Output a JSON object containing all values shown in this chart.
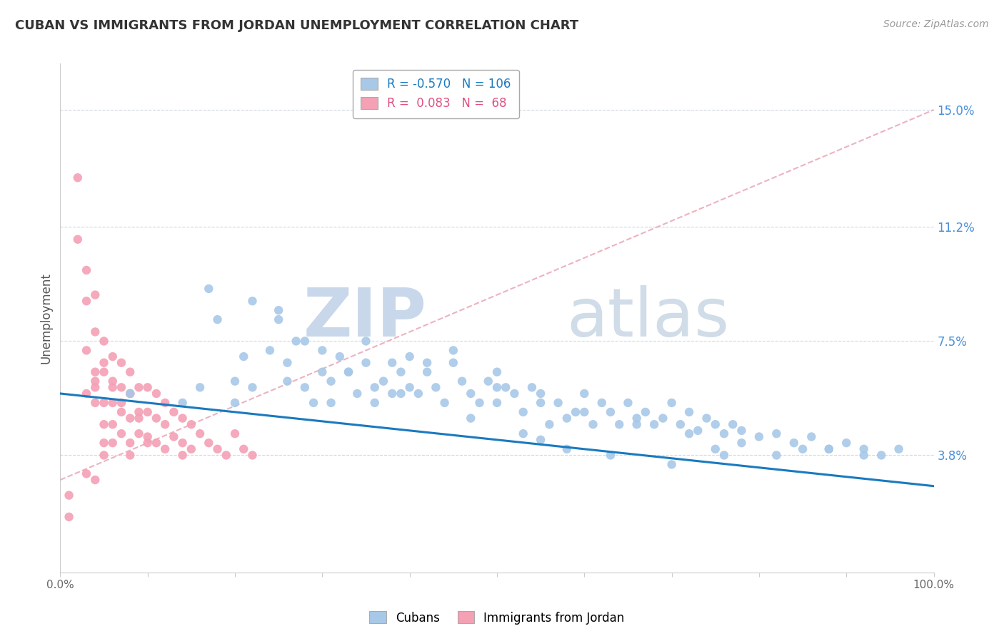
{
  "title": "CUBAN VS IMMIGRANTS FROM JORDAN UNEMPLOYMENT CORRELATION CHART",
  "source": "Source: ZipAtlas.com",
  "ylabel": "Unemployment",
  "y_ticks": [
    0.038,
    0.075,
    0.112,
    0.15
  ],
  "y_tick_labels": [
    "3.8%",
    "7.5%",
    "11.2%",
    "15.0%"
  ],
  "xlim": [
    0.0,
    1.0
  ],
  "ylim": [
    0.0,
    0.165
  ],
  "blue_color": "#a8c8e8",
  "pink_color": "#f4a0b5",
  "trend_blue_color": "#1a7abf",
  "trend_pink_color": "#e8a0b0",
  "watermark_zip": "ZIP",
  "watermark_atlas": "atlas",
  "watermark_color": "#ccd8e8",
  "blue_trend_x": [
    0.0,
    1.0
  ],
  "blue_trend_y": [
    0.058,
    0.028
  ],
  "pink_trend_x": [
    0.0,
    1.0
  ],
  "pink_trend_y": [
    0.03,
    0.15
  ],
  "blue_scatter_x": [
    0.08,
    0.14,
    0.16,
    0.18,
    0.2,
    0.2,
    0.21,
    0.22,
    0.24,
    0.25,
    0.26,
    0.27,
    0.28,
    0.29,
    0.3,
    0.31,
    0.32,
    0.33,
    0.34,
    0.35,
    0.36,
    0.37,
    0.38,
    0.38,
    0.39,
    0.4,
    0.41,
    0.42,
    0.43,
    0.44,
    0.45,
    0.46,
    0.47,
    0.48,
    0.49,
    0.5,
    0.5,
    0.51,
    0.52,
    0.53,
    0.54,
    0.55,
    0.56,
    0.57,
    0.58,
    0.59,
    0.6,
    0.61,
    0.62,
    0.63,
    0.64,
    0.65,
    0.66,
    0.67,
    0.68,
    0.69,
    0.7,
    0.71,
    0.72,
    0.73,
    0.74,
    0.75,
    0.76,
    0.77,
    0.78,
    0.8,
    0.82,
    0.84,
    0.86,
    0.88,
    0.9,
    0.92,
    0.94,
    0.96,
    0.17,
    0.22,
    0.25,
    0.28,
    0.3,
    0.33,
    0.36,
    0.39,
    0.42,
    0.45,
    0.5,
    0.55,
    0.6,
    0.66,
    0.72,
    0.78,
    0.35,
    0.4,
    0.47,
    0.53,
    0.58,
    0.63,
    0.7,
    0.76,
    0.82,
    0.88,
    0.26,
    0.31,
    0.55,
    0.75,
    0.85,
    0.92
  ],
  "blue_scatter_y": [
    0.058,
    0.055,
    0.06,
    0.082,
    0.062,
    0.055,
    0.07,
    0.06,
    0.072,
    0.085,
    0.068,
    0.075,
    0.06,
    0.055,
    0.065,
    0.062,
    0.07,
    0.065,
    0.058,
    0.075,
    0.055,
    0.062,
    0.068,
    0.058,
    0.065,
    0.07,
    0.058,
    0.065,
    0.06,
    0.055,
    0.068,
    0.062,
    0.058,
    0.055,
    0.062,
    0.065,
    0.055,
    0.06,
    0.058,
    0.052,
    0.06,
    0.055,
    0.048,
    0.055,
    0.05,
    0.052,
    0.058,
    0.048,
    0.055,
    0.052,
    0.048,
    0.055,
    0.05,
    0.052,
    0.048,
    0.05,
    0.055,
    0.048,
    0.052,
    0.046,
    0.05,
    0.048,
    0.045,
    0.048,
    0.046,
    0.044,
    0.045,
    0.042,
    0.044,
    0.04,
    0.042,
    0.04,
    0.038,
    0.04,
    0.092,
    0.088,
    0.082,
    0.075,
    0.072,
    0.065,
    0.06,
    0.058,
    0.068,
    0.072,
    0.06,
    0.058,
    0.052,
    0.048,
    0.045,
    0.042,
    0.068,
    0.06,
    0.05,
    0.045,
    0.04,
    0.038,
    0.035,
    0.038,
    0.038,
    0.04,
    0.062,
    0.055,
    0.043,
    0.04,
    0.04,
    0.038
  ],
  "pink_scatter_x": [
    0.01,
    0.02,
    0.02,
    0.03,
    0.03,
    0.03,
    0.04,
    0.04,
    0.04,
    0.04,
    0.05,
    0.05,
    0.05,
    0.05,
    0.05,
    0.06,
    0.06,
    0.06,
    0.06,
    0.07,
    0.07,
    0.07,
    0.07,
    0.08,
    0.08,
    0.08,
    0.08,
    0.09,
    0.09,
    0.09,
    0.1,
    0.1,
    0.1,
    0.11,
    0.11,
    0.11,
    0.12,
    0.12,
    0.12,
    0.13,
    0.13,
    0.14,
    0.14,
    0.14,
    0.15,
    0.15,
    0.16,
    0.17,
    0.18,
    0.19,
    0.2,
    0.21,
    0.22,
    0.04,
    0.05,
    0.06,
    0.06,
    0.07,
    0.08,
    0.08,
    0.09,
    0.1,
    0.03,
    0.04,
    0.05,
    0.03,
    0.04,
    0.01
  ],
  "pink_scatter_y": [
    0.018,
    0.128,
    0.108,
    0.098,
    0.088,
    0.072,
    0.09,
    0.078,
    0.065,
    0.055,
    0.075,
    0.065,
    0.055,
    0.048,
    0.042,
    0.07,
    0.062,
    0.055,
    0.048,
    0.068,
    0.06,
    0.052,
    0.045,
    0.065,
    0.058,
    0.05,
    0.042,
    0.06,
    0.052,
    0.045,
    0.06,
    0.052,
    0.044,
    0.058,
    0.05,
    0.042,
    0.055,
    0.048,
    0.04,
    0.052,
    0.044,
    0.05,
    0.042,
    0.038,
    0.048,
    0.04,
    0.045,
    0.042,
    0.04,
    0.038,
    0.045,
    0.04,
    0.038,
    0.06,
    0.068,
    0.06,
    0.042,
    0.055,
    0.058,
    0.038,
    0.05,
    0.042,
    0.058,
    0.062,
    0.038,
    0.032,
    0.03,
    0.025
  ]
}
